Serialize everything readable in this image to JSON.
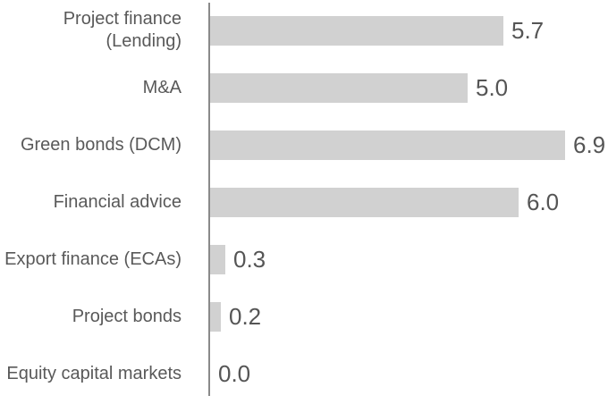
{
  "chart_data": {
    "type": "bar",
    "orientation": "horizontal",
    "title": "",
    "xlabel": "",
    "ylabel": "",
    "grid": false,
    "legend": false,
    "xlim": [
      0,
      7.7
    ],
    "categories": [
      "Project finance (Lending)",
      "M&A",
      "Green bonds (DCM)",
      "Financial advice",
      "Export finance (ECAs)",
      "Project bonds",
      "Equity capital markets"
    ],
    "values": [
      5.7,
      5.0,
      6.9,
      6.0,
      0.3,
      0.2,
      0.0
    ],
    "value_labels": [
      "5.7",
      "5.0",
      "6.9",
      "6.0",
      "0.3",
      "0.2",
      "0.0"
    ],
    "colors": {
      "bar_fill": "#d1d1d1",
      "axis_line": "#8a8a8a",
      "category_text": "#595959",
      "value_text": "#555555",
      "background": "#ffffff"
    }
  }
}
